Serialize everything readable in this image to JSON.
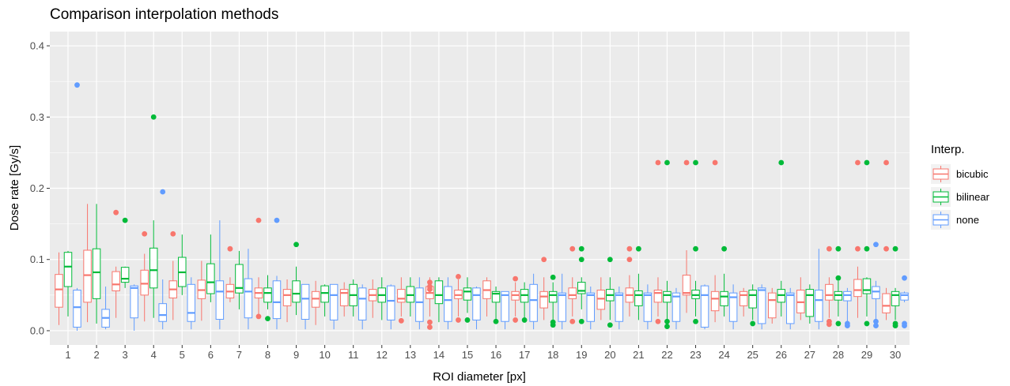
{
  "chart_data": {
    "type": "boxplot",
    "title": "Comparison interpolation methods",
    "xlabel": "ROI diameter [px]",
    "ylabel": "Dose rate [Gy/s]",
    "categories": [
      "1",
      "2",
      "3",
      "4",
      "5",
      "6",
      "7",
      "8",
      "9",
      "10",
      "11",
      "12",
      "13",
      "14",
      "15",
      "16",
      "17",
      "18",
      "19",
      "20",
      "21",
      "22",
      "23",
      "24",
      "25",
      "26",
      "27",
      "28",
      "29",
      "30"
    ],
    "y_ticks": [
      "0.0",
      "0.1",
      "0.2",
      "0.3",
      "0.4"
    ],
    "ylim": [
      -0.02,
      0.42
    ],
    "grid": true,
    "legend": {
      "title": "Interp.",
      "position": "right",
      "entries": [
        "bicubic",
        "bilinear",
        "none"
      ]
    },
    "colors": {
      "bicubic": "#F8766D",
      "bilinear": "#00BA38",
      "none": "#619CFF",
      "panel": "#EBEBEB",
      "grid": "#FFFFFF"
    },
    "series": [
      {
        "name": "bicubic",
        "boxes": [
          [
            0.008,
            0.033,
            0.058,
            0.079,
            0.11
          ],
          [
            0.012,
            0.04,
            0.078,
            0.113,
            0.178
          ],
          [
            0.018,
            0.056,
            0.065,
            0.083,
            0.09
          ],
          [
            0.013,
            0.05,
            0.066,
            0.085,
            0.108
          ],
          [
            0.015,
            0.046,
            0.058,
            0.07,
            0.098
          ],
          [
            0.014,
            0.045,
            0.057,
            0.071,
            0.098
          ],
          [
            0.04,
            0.046,
            0.055,
            0.065,
            0.075
          ],
          [
            0.02,
            0.046,
            0.053,
            0.06,
            0.075
          ],
          [
            0.012,
            0.035,
            0.05,
            0.058,
            0.072
          ],
          [
            0.008,
            0.033,
            0.045,
            0.055,
            0.07
          ],
          [
            0.02,
            0.035,
            0.053,
            0.058,
            0.068
          ],
          [
            0.018,
            0.042,
            0.05,
            0.058,
            0.072
          ],
          [
            0.02,
            0.04,
            0.045,
            0.058,
            0.075
          ],
          [
            0.02,
            0.045,
            0.053,
            0.062,
            0.075
          ],
          [
            0.02,
            0.045,
            0.05,
            0.057,
            0.072
          ],
          [
            0.02,
            0.045,
            0.057,
            0.07,
            0.075
          ],
          [
            0.02,
            0.043,
            0.05,
            0.055,
            0.068
          ],
          [
            0.015,
            0.032,
            0.048,
            0.055,
            0.075
          ],
          [
            0.02,
            0.045,
            0.05,
            0.06,
            0.075
          ],
          [
            0.015,
            0.03,
            0.045,
            0.057,
            0.075
          ],
          [
            0.02,
            0.04,
            0.05,
            0.06,
            0.078
          ],
          [
            0.02,
            0.04,
            0.053,
            0.057,
            0.075
          ],
          [
            0.025,
            0.05,
            0.053,
            0.078,
            0.113
          ],
          [
            0.012,
            0.028,
            0.045,
            0.055,
            0.078
          ],
          [
            0.02,
            0.035,
            0.05,
            0.055,
            0.06
          ]
        ],
        "boxes_26_30": [
          [
            0.01,
            0.018,
            0.043,
            0.053,
            0.06
          ],
          [
            0.015,
            0.025,
            0.04,
            0.057,
            0.075
          ],
          [
            0.018,
            0.043,
            0.05,
            0.065,
            0.075
          ],
          [
            0.018,
            0.048,
            0.057,
            0.072,
            0.09
          ],
          [
            0.015,
            0.025,
            0.035,
            0.052,
            0.06
          ]
        ],
        "outliers": [
          [],
          [],
          [
            0.166
          ],
          [
            0.136
          ],
          [
            0.136
          ],
          [],
          [
            0.115
          ],
          [
            0.155,
            0.02
          ],
          [],
          [],
          [],
          [],
          [
            0.014
          ],
          [
            0.068,
            0.062,
            0.058,
            0.012,
            0.005
          ],
          [
            0.076,
            0.015
          ],
          [],
          [
            0.073,
            0.015
          ],
          [
            0.1
          ],
          [
            0.115,
            0.013
          ],
          [],
          [
            0.115,
            0.1
          ],
          [
            0.236,
            0.013
          ],
          [
            0.236
          ],
          [
            0.236
          ],
          [],
          [],
          [],
          [
            0.115,
            0.013,
            0.009
          ],
          [
            0.236,
            0.115
          ],
          [
            0.236,
            0.115
          ]
        ]
      },
      {
        "name": "bilinear",
        "boxes": [
          [
            0.02,
            0.062,
            0.09,
            0.11,
            0.112
          ],
          [
            0.01,
            0.045,
            0.082,
            0.115,
            0.178
          ],
          [
            0.06,
            0.068,
            0.073,
            0.089,
            0.09
          ],
          [
            0.018,
            0.06,
            0.085,
            0.116,
            0.155
          ],
          [
            0.05,
            0.062,
            0.082,
            0.103,
            0.135
          ],
          [
            0.04,
            0.052,
            0.068,
            0.094,
            0.135
          ],
          [
            0.03,
            0.053,
            0.06,
            0.093,
            0.112
          ],
          [
            0.03,
            0.04,
            0.053,
            0.06,
            0.078
          ],
          [
            0.022,
            0.04,
            0.052,
            0.07,
            0.09
          ],
          [
            0.02,
            0.04,
            0.053,
            0.063,
            0.065
          ],
          [
            0.02,
            0.035,
            0.05,
            0.065,
            0.072
          ],
          [
            0.015,
            0.04,
            0.05,
            0.06,
            0.075
          ],
          [
            0.02,
            0.04,
            0.05,
            0.062,
            0.075
          ],
          [
            0.012,
            0.038,
            0.05,
            0.07,
            0.075
          ],
          [
            0.025,
            0.043,
            0.055,
            0.06,
            0.075
          ],
          [
            0.015,
            0.04,
            0.052,
            0.055,
            0.062
          ],
          [
            0.015,
            0.04,
            0.05,
            0.058,
            0.068
          ],
          [
            0.015,
            0.04,
            0.05,
            0.055,
            0.068
          ],
          [
            0.03,
            0.052,
            0.056,
            0.068,
            0.075
          ],
          [
            0.015,
            0.042,
            0.05,
            0.058,
            0.075
          ],
          [
            0.015,
            0.035,
            0.05,
            0.056,
            0.08
          ],
          [
            0.015,
            0.04,
            0.05,
            0.055,
            0.07
          ],
          [
            0.02,
            0.045,
            0.05,
            0.057,
            0.07
          ],
          [
            0.02,
            0.035,
            0.048,
            0.055,
            0.08
          ],
          [
            0.015,
            0.032,
            0.05,
            0.057,
            0.065
          ]
        ],
        "boxes_26_30": [
          [
            0.02,
            0.04,
            0.05,
            0.058,
            0.07
          ],
          [
            0.01,
            0.02,
            0.05,
            0.058,
            0.065
          ],
          [
            0.02,
            0.043,
            0.05,
            0.055,
            0.07
          ],
          [
            0.02,
            0.052,
            0.057,
            0.073,
            0.075
          ],
          [
            0.015,
            0.035,
            0.05,
            0.055,
            0.06
          ]
        ],
        "outliers": [
          [],
          [],
          [
            0.155
          ],
          [
            0.3
          ],
          [],
          [],
          [],
          [
            0.017
          ],
          [
            0.121
          ],
          [],
          [],
          [],
          [],
          [],
          [
            0.015
          ],
          [
            0.013
          ],
          [
            0.015
          ],
          [
            0.075,
            0.012,
            0.008
          ],
          [
            0.115,
            0.1,
            0.013
          ],
          [
            0.1,
            0.008
          ],
          [
            0.115
          ],
          [
            0.236,
            0.013,
            0.006
          ],
          [
            0.236,
            0.115,
            0.013
          ],
          [
            0.115
          ],
          [
            0.01
          ],
          [
            0.236
          ],
          [],
          [
            0.115,
            0.074,
            0.01
          ],
          [
            0.236,
            0.115,
            0.01
          ],
          [
            0.115,
            0.01,
            0.007
          ]
        ]
      },
      {
        "name": "none",
        "boxes": [
          [
            0.0,
            0.005,
            0.033,
            0.057,
            0.06
          ],
          [
            0.002,
            0.005,
            0.018,
            0.03,
            0.062
          ],
          [
            0.0,
            0.018,
            0.06,
            0.063,
            0.065
          ],
          [
            0.002,
            0.013,
            0.022,
            0.038,
            0.072
          ],
          [
            0.002,
            0.013,
            0.025,
            0.065,
            0.075
          ],
          [
            0.002,
            0.016,
            0.055,
            0.07,
            0.155
          ],
          [
            0.002,
            0.018,
            0.055,
            0.073,
            0.115
          ],
          [
            0.002,
            0.017,
            0.04,
            0.07,
            0.077
          ],
          [
            0.002,
            0.016,
            0.045,
            0.065,
            0.065
          ],
          [
            0.002,
            0.015,
            0.05,
            0.065,
            0.065
          ],
          [
            0.002,
            0.015,
            0.045,
            0.06,
            0.065
          ],
          [
            0.002,
            0.015,
            0.042,
            0.063,
            0.065
          ],
          [
            0.002,
            0.013,
            0.04,
            0.06,
            0.075
          ],
          [
            0.002,
            0.013,
            0.043,
            0.062,
            0.075
          ],
          [
            0.002,
            0.015,
            0.05,
            0.06,
            0.062
          ],
          [
            0.002,
            0.013,
            0.05,
            0.055,
            0.055
          ],
          [
            0.002,
            0.013,
            0.043,
            0.065,
            0.08
          ],
          [
            0.002,
            0.013,
            0.05,
            0.053,
            0.08
          ],
          [
            0.002,
            0.013,
            0.05,
            0.053,
            0.062
          ],
          [
            0.002,
            0.013,
            0.05,
            0.053,
            0.062
          ],
          [
            0.002,
            0.013,
            0.05,
            0.053,
            0.065
          ],
          [
            0.002,
            0.013,
            0.048,
            0.053,
            0.06
          ],
          [
            0.002,
            0.005,
            0.05,
            0.063,
            0.065
          ],
          [
            0.002,
            0.013,
            0.047,
            0.053,
            0.065
          ],
          [
            0.002,
            0.01,
            0.057,
            0.06,
            0.065
          ]
        ],
        "boxes_26_30": [
          [
            0.002,
            0.01,
            0.05,
            0.053,
            0.06
          ],
          [
            0.002,
            0.013,
            0.043,
            0.057,
            0.115
          ],
          [
            0.01,
            0.042,
            0.05,
            0.055,
            0.06
          ],
          [
            0.01,
            0.045,
            0.055,
            0.062,
            0.07
          ],
          [
            0.04,
            0.043,
            0.05,
            0.053,
            0.055
          ]
        ],
        "outliers": [
          [
            0.345
          ],
          [],
          [],
          [
            0.195
          ],
          [],
          [],
          [],
          [
            0.155
          ],
          [],
          [],
          [],
          [],
          [],
          [],
          [],
          [],
          [],
          [],
          [],
          [],
          [],
          [],
          [],
          [],
          [],
          [],
          [],
          [
            0.01,
            0.007
          ],
          [
            0.121,
            0.013,
            0.007
          ],
          [
            0.074,
            0.01,
            0.007
          ]
        ]
      }
    ]
  }
}
